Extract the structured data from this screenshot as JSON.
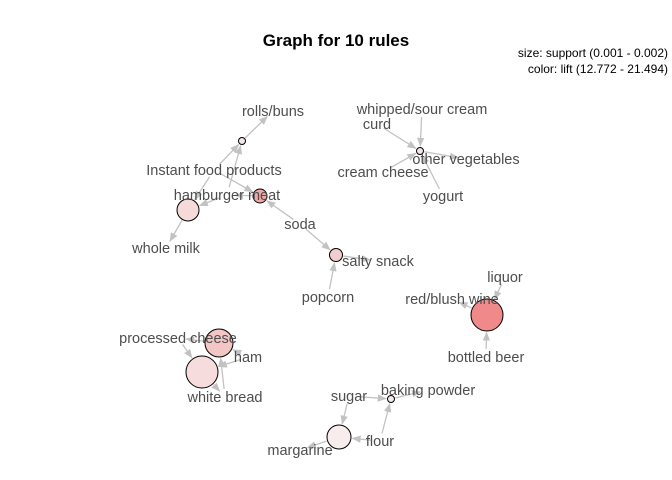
{
  "title": "Graph for 10 rules",
  "legend": {
    "size_text": "size: support (0.001 - 0.002)",
    "color_text": "color: lift (12.772 - 21.494)"
  },
  "items": [
    {
      "id": "rolls_buns",
      "label": "rolls/buns"
    },
    {
      "id": "instant_food",
      "label": "Instant food products"
    },
    {
      "id": "hamburger_meat",
      "label": "hamburger meat"
    },
    {
      "id": "whole_milk",
      "label": "whole milk"
    },
    {
      "id": "soda",
      "label": "soda"
    },
    {
      "id": "whipped_sour_cream",
      "label": "whipped/sour cream"
    },
    {
      "id": "curd",
      "label": "curd"
    },
    {
      "id": "other_vegetables",
      "label": "other vegetables"
    },
    {
      "id": "cream_cheese",
      "label": "cream cheese"
    },
    {
      "id": "yogurt",
      "label": "yogurt"
    },
    {
      "id": "salty_snack",
      "label": "salty snack"
    },
    {
      "id": "popcorn",
      "label": "popcorn"
    },
    {
      "id": "liquor",
      "label": "liquor"
    },
    {
      "id": "red_blush_wine",
      "label": "red/blush wine"
    },
    {
      "id": "bottled_beer",
      "label": "bottled beer"
    },
    {
      "id": "processed_cheese",
      "label": "processed cheese"
    },
    {
      "id": "ham",
      "label": "ham"
    },
    {
      "id": "white_bread",
      "label": "white bread"
    },
    {
      "id": "sugar",
      "label": "sugar"
    },
    {
      "id": "baking_powder",
      "label": "baking powder"
    },
    {
      "id": "flour",
      "label": "flour"
    },
    {
      "id": "margarine",
      "label": "margarine"
    }
  ],
  "rules": [
    {
      "id": "rule1",
      "lhs": [
        "instant_food",
        "soda"
      ],
      "rhs": "hamburger_meat",
      "lift_color": "#f2a7a7"
    },
    {
      "id": "rule2",
      "lhs": [
        "instant_food",
        "hamburger_meat"
      ],
      "rhs": "rolls_buns",
      "lift_color": "#f5e6e6"
    },
    {
      "id": "rule3",
      "lhs": [
        "hamburger_meat",
        "instant_food"
      ],
      "rhs": "whole_milk",
      "lift_color": "#f6dada"
    },
    {
      "id": "rule4",
      "lhs": [
        "soda",
        "popcorn"
      ],
      "rhs": "salty_snack",
      "lift_color": "#f3cdcd"
    },
    {
      "id": "rule5",
      "lhs": [
        "whipped_sour_cream",
        "curd",
        "cream_cheese",
        "yogurt"
      ],
      "rhs": "other_vegetables",
      "lift_color": "#f5e2e2"
    },
    {
      "id": "rule6",
      "lhs": [
        "liquor",
        "bottled_beer"
      ],
      "rhs": "red_blush_wine",
      "lift_color": "#f08a8a"
    },
    {
      "id": "rule7",
      "lhs": [
        "white_bread",
        "ham"
      ],
      "rhs": "processed_cheese",
      "lift_color": "#f3c6c6"
    },
    {
      "id": "rule8",
      "lhs": [
        "processed_cheese",
        "ham"
      ],
      "rhs": "white_bread",
      "lift_color": "#f6dcdc"
    },
    {
      "id": "rule9",
      "lhs": [
        "sugar",
        "flour"
      ],
      "rhs": "baking_powder",
      "lift_color": "#f6e9e9"
    },
    {
      "id": "rule10",
      "lhs": [
        "sugar",
        "flour"
      ],
      "rhs": "margarine",
      "lift_color": "#f7eded"
    }
  ]
}
